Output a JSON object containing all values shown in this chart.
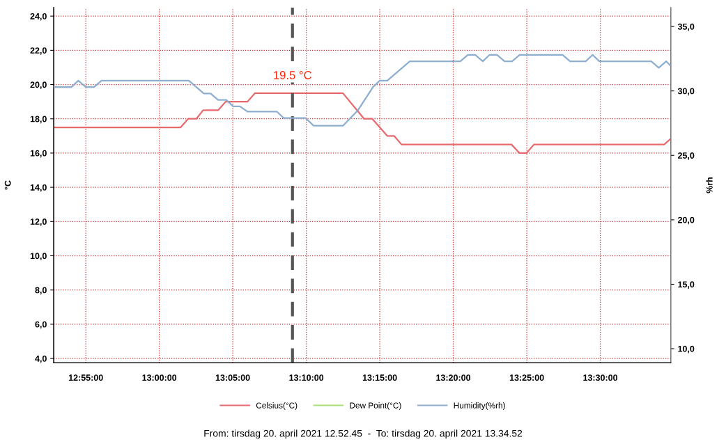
{
  "chart_data": {
    "type": "line",
    "ylabel": "°C",
    "y2label": "%rh",
    "xlim": [
      12.8803,
      13.58
    ],
    "xticks": [
      {
        "value": 12.9167,
        "label": "12:55:00"
      },
      {
        "value": 13.0,
        "label": "13:00:00"
      },
      {
        "value": 13.0833,
        "label": "13:05:00"
      },
      {
        "value": 13.1667,
        "label": "13:10:00"
      },
      {
        "value": 13.25,
        "label": "13:15:00"
      },
      {
        "value": 13.3333,
        "label": "13:20:00"
      },
      {
        "value": 13.4167,
        "label": "13:25:00"
      },
      {
        "value": 13.5,
        "label": "13:30:00"
      }
    ],
    "ylim": [
      3.75,
      24.5
    ],
    "yticks": [
      {
        "value": 4,
        "label": "4,0"
      },
      {
        "value": 6,
        "label": "6,0"
      },
      {
        "value": 8,
        "label": "8,0"
      },
      {
        "value": 10,
        "label": "10,0"
      },
      {
        "value": 12,
        "label": "12,0"
      },
      {
        "value": 14,
        "label": "14,0"
      },
      {
        "value": 16,
        "label": "16,0"
      },
      {
        "value": 18,
        "label": "18,0"
      },
      {
        "value": 20,
        "label": "20,0"
      },
      {
        "value": 22,
        "label": "22,0"
      },
      {
        "value": 24,
        "label": "24,0"
      }
    ],
    "y2lim": [
      8.91,
      36.47
    ],
    "y2ticks": [
      {
        "value": 10,
        "label": "10,0"
      },
      {
        "value": 15,
        "label": "15,0"
      },
      {
        "value": 20,
        "label": "20,0"
      },
      {
        "value": 25,
        "label": "25,0"
      },
      {
        "value": 30,
        "label": "30,0"
      },
      {
        "value": 35,
        "label": "35,0"
      }
    ],
    "grid": true,
    "legend": "bottom",
    "line_style": "solid",
    "marker": "none",
    "series": [
      {
        "name": "Celsius(°C)",
        "color": "#e8696b",
        "x": [
          12.8803,
          13.0242,
          13.0327,
          13.042,
          13.0497,
          13.0667,
          13.0752,
          13.1,
          13.1085,
          13.2082,
          13.2322,
          13.2415,
          13.2585,
          13.2662,
          13.2747,
          13.3993,
          13.4085,
          13.4163,
          13.4248,
          13.5725,
          13.579
        ],
        "values": [
          17.5,
          17.5,
          18,
          18,
          18.5,
          18.5,
          19,
          19,
          19.5,
          19.5,
          18,
          18,
          17,
          17,
          16.5,
          16.5,
          16,
          16,
          16.5,
          16.5,
          16.8
        ]
      },
      {
        "name": "Dew Point(°C)",
        "color": "#a6e07a"
      },
      {
        "name": "Humidity(%rh)",
        "color": "#8eaed0",
        "axis": "y2",
        "x": [
          12.8803,
          12.9004,
          12.9082,
          12.9167,
          12.926,
          12.9345,
          13.0335,
          13.0505,
          13.0582,
          13.0667,
          13.076,
          13.0837,
          13.0915,
          13.1,
          13.1332,
          13.141,
          13.1657,
          13.175,
          13.2082,
          13.2253,
          13.2423,
          13.25,
          13.2585,
          13.284,
          13.3413,
          13.3498,
          13.3583,
          13.3668,
          13.3745,
          13.383,
          13.3915,
          13.4,
          13.4085,
          13.4573,
          13.4658,
          13.4835,
          13.4913,
          13.499,
          13.5578,
          13.5663,
          13.5748,
          13.579
        ],
        "values": [
          30.3,
          30.3,
          30.8,
          30.3,
          30.3,
          30.8,
          30.8,
          29.8,
          29.8,
          29.3,
          29.3,
          28.8,
          28.8,
          28.4,
          28.4,
          27.9,
          27.9,
          27.3,
          27.3,
          28.5,
          30.3,
          30.8,
          30.8,
          32.3,
          32.3,
          32.8,
          32.8,
          32.3,
          32.8,
          32.8,
          32.3,
          32.3,
          32.8,
          32.8,
          32.3,
          32.3,
          32.8,
          32.3,
          32.3,
          31.8,
          32.3,
          32.0
        ]
      }
    ],
    "ref_lines": [
      {
        "axis": "x",
        "value": 13.151,
        "color": "#555555",
        "line_style": "dashed"
      }
    ],
    "annotations": [
      {
        "text": "19.5 °C",
        "x": 13.151,
        "y": 19.5
      },
      "From: tirsdag 20. april 2021 12.52.45  -  To: tirsdag 20. april 2021 13.34.52"
    ]
  }
}
